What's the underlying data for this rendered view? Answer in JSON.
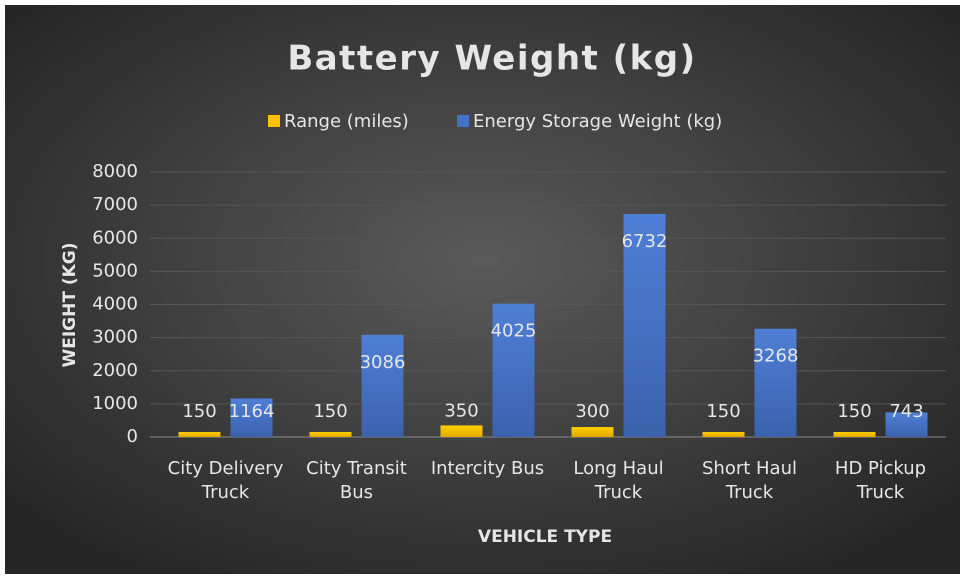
{
  "chart_data": {
    "type": "bar",
    "title": "Battery Weight (kg)",
    "x_label": "VEHICLE TYPE",
    "y_label": "WEIGHT (KG)",
    "categories": [
      "City Delivery Truck",
      "City Transit Bus",
      "Intercity Bus",
      "Long Haul Truck",
      "Short Haul Truck",
      "HD Pickup Truck"
    ],
    "series": [
      {
        "name": "Range (miles)",
        "color": "#ffc000",
        "values": [
          150,
          150,
          350,
          300,
          150,
          150
        ]
      },
      {
        "name": "Energy Storage Weight (kg)",
        "color": "#4472c4",
        "values": [
          1164,
          3086,
          4025,
          6732,
          3268,
          743
        ]
      }
    ],
    "ylim": [
      0,
      8000
    ],
    "yticks": [
      0,
      1000,
      2000,
      3000,
      4000,
      5000,
      6000,
      7000,
      8000
    ],
    "grid": true,
    "legend": "top"
  }
}
